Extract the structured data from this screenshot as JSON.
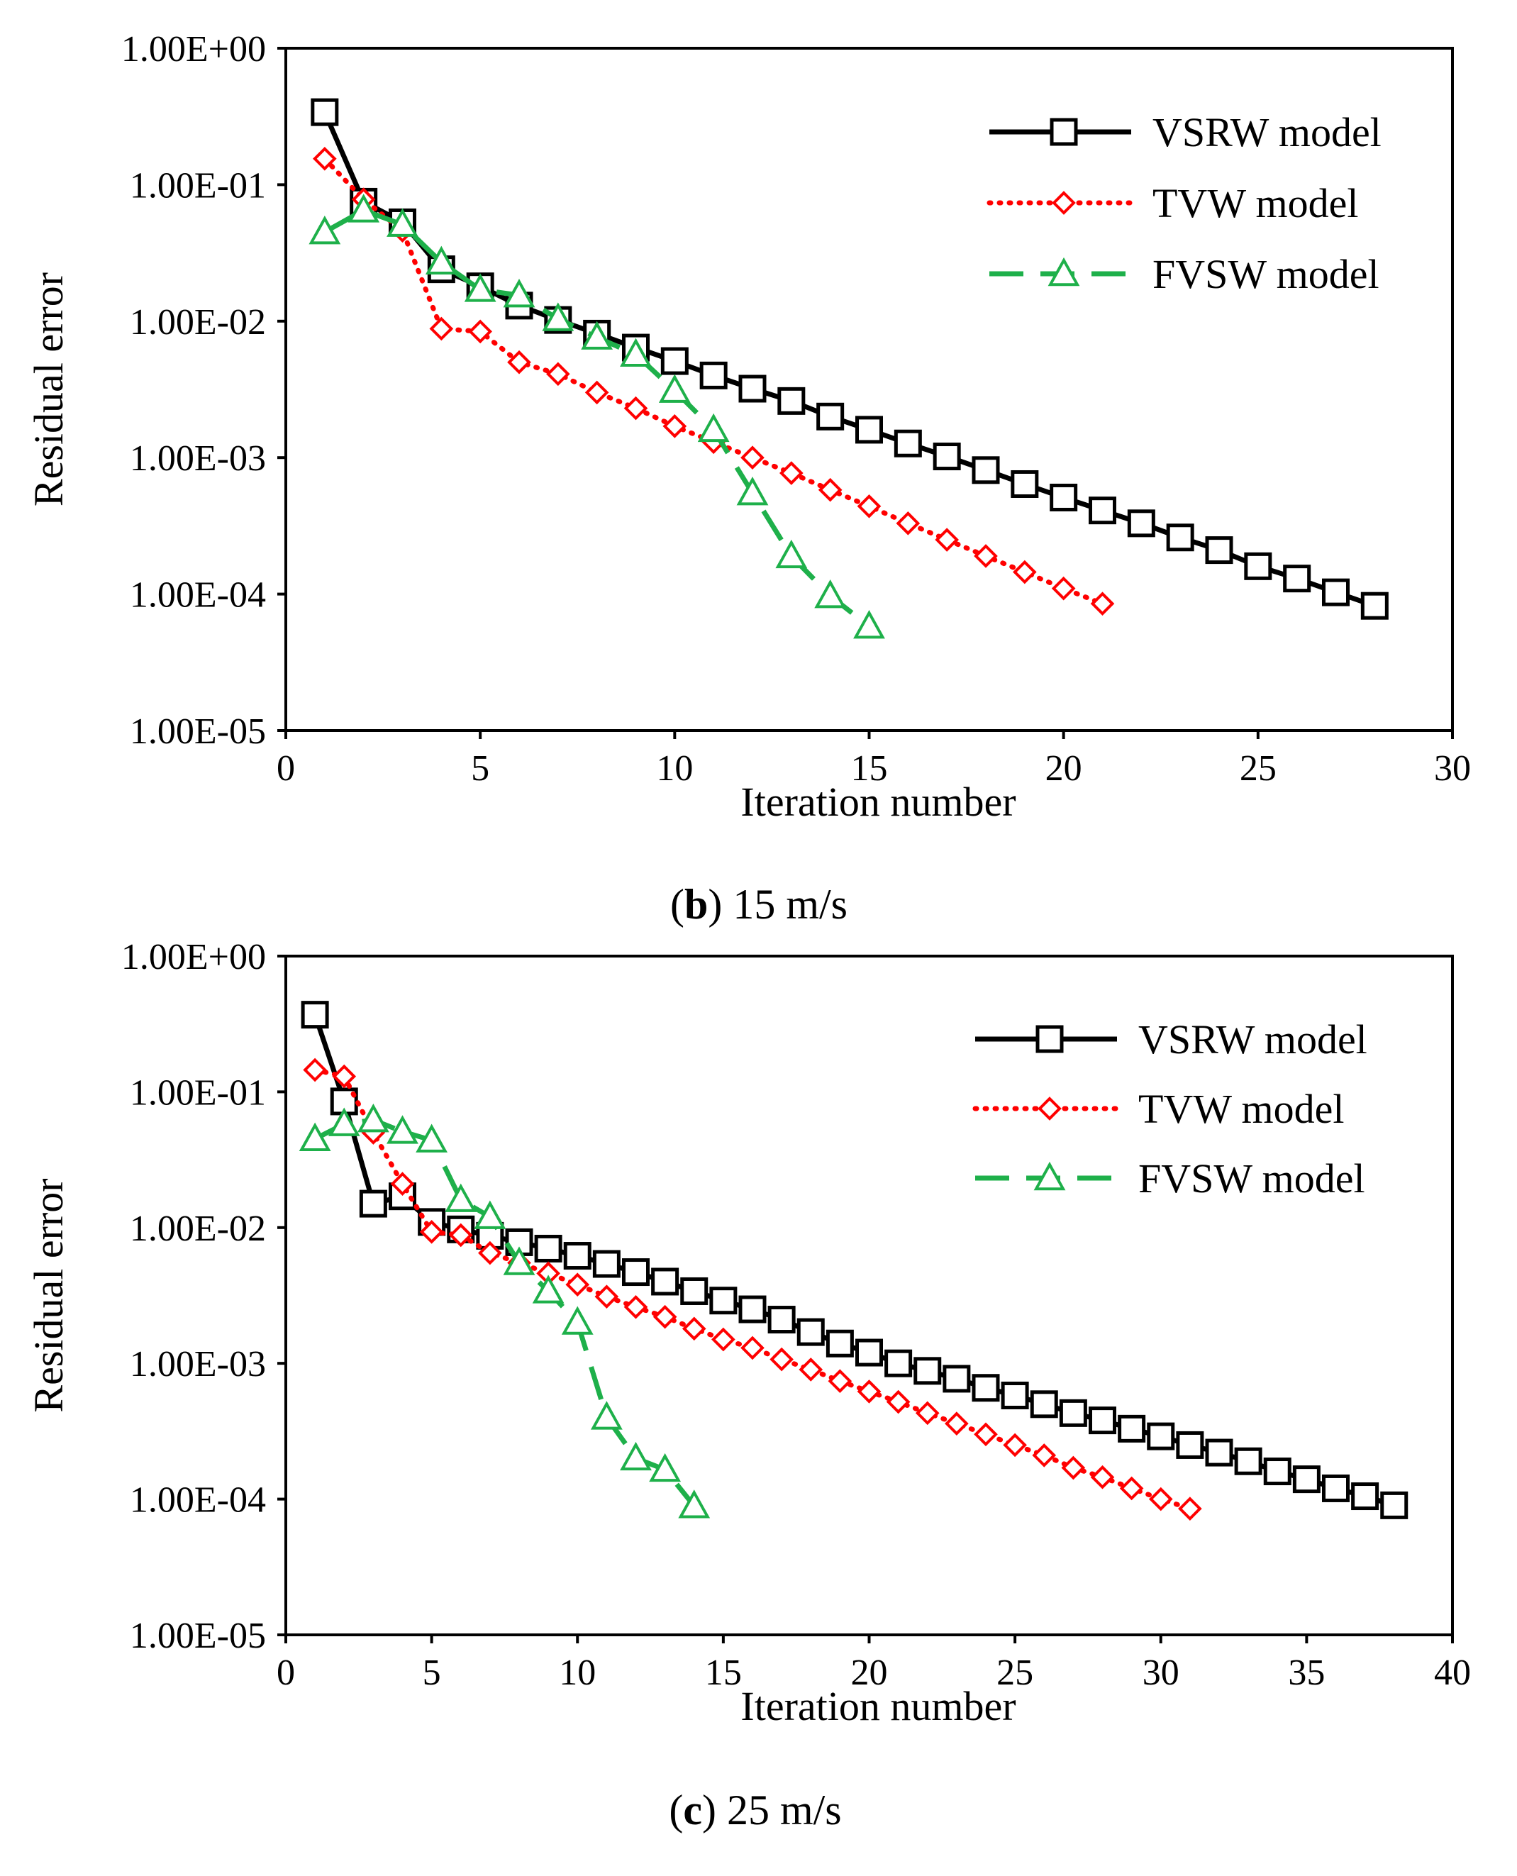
{
  "chart_data": [
    {
      "type": "line",
      "panel_label": "b",
      "caption_text": " 15 m/s",
      "xlabel": "Iteration number",
      "ylabel": "Residual error",
      "xlim": [
        0,
        30
      ],
      "xticks": [
        0,
        5,
        10,
        15,
        20,
        25,
        30
      ],
      "ylim": [
        1e-05,
        1
      ],
      "yscale": "log",
      "yticks": [
        "1.00E+00",
        "1.00E-01",
        "1.00E-02",
        "1.00E-03",
        "1.00E-04",
        "1.00E-05"
      ],
      "legend_position": "top-right",
      "series": [
        {
          "name": "VSRW model",
          "color": "#000000",
          "marker": "square",
          "line": "solid",
          "x": [
            1,
            2,
            3,
            4,
            5,
            6,
            7,
            8,
            9,
            10,
            11,
            12,
            13,
            14,
            15,
            16,
            17,
            18,
            19,
            20,
            21,
            22,
            23,
            24,
            25,
            26,
            27,
            28
          ],
          "values": [
            0.34,
            0.075,
            0.053,
            0.024,
            0.018,
            0.013,
            0.0102,
            0.0081,
            0.0064,
            0.0051,
            0.004,
            0.0032,
            0.0026,
            0.002,
            0.0016,
            0.00127,
            0.00102,
            0.00081,
            0.00064,
            0.00051,
            0.00041,
            0.00033,
            0.00026,
            0.00021,
            0.00016,
            0.00013,
            0.000103,
            8.2e-05
          ]
        },
        {
          "name": "TVW model",
          "color": "#ff0000",
          "marker": "diamond",
          "line": "dotted",
          "x": [
            1,
            2,
            3,
            4,
            5,
            6,
            7,
            8,
            9,
            10,
            11,
            12,
            13,
            14,
            15,
            16,
            17,
            18,
            19,
            20,
            21
          ],
          "values": [
            0.155,
            0.078,
            0.046,
            0.0088,
            0.0084,
            0.005,
            0.0041,
            0.003,
            0.0023,
            0.0017,
            0.0013,
            0.001,
            0.00077,
            0.00058,
            0.00044,
            0.00033,
            0.00025,
            0.00019,
            0.000145,
            0.00011,
            8.5e-05
          ]
        },
        {
          "name": "FVSW model",
          "color": "#1eb04a",
          "marker": "triangle",
          "line": "dashed",
          "x": [
            1,
            2,
            3,
            4,
            5,
            6,
            7,
            8,
            9,
            10,
            11,
            12,
            13,
            14,
            15
          ],
          "values": [
            0.045,
            0.065,
            0.051,
            0.027,
            0.017,
            0.0155,
            0.0104,
            0.0076,
            0.0057,
            0.0031,
            0.0016,
            0.00055,
            0.00019,
            9.7e-05,
            5.8e-05
          ]
        }
      ]
    },
    {
      "type": "line",
      "panel_label": "c",
      "caption_text": " 25 m/s",
      "xlabel": "Iteration number",
      "ylabel": "Residual error",
      "xlim": [
        0,
        40
      ],
      "xticks": [
        0,
        5,
        10,
        15,
        20,
        25,
        30,
        35,
        40
      ],
      "ylim": [
        1e-05,
        1
      ],
      "yscale": "log",
      "yticks": [
        "1.00E+00",
        "1.00E-01",
        "1.00E-02",
        "1.00E-03",
        "1.00E-04",
        "1.00E-05"
      ],
      "legend_position": "top-right",
      "series": [
        {
          "name": "VSRW model",
          "color": "#000000",
          "marker": "square",
          "line": "solid",
          "x": [
            1,
            2,
            3,
            4,
            5,
            6,
            7,
            8,
            9,
            10,
            11,
            12,
            13,
            14,
            15,
            16,
            17,
            18,
            19,
            20,
            21,
            22,
            23,
            24,
            25,
            26,
            27,
            28,
            29,
            30,
            31,
            32,
            33,
            34,
            35,
            36,
            37,
            38
          ],
          "values": [
            0.37,
            0.085,
            0.015,
            0.017,
            0.011,
            0.0097,
            0.0087,
            0.0078,
            0.007,
            0.0062,
            0.0054,
            0.0047,
            0.004,
            0.0034,
            0.0029,
            0.0025,
            0.0021,
            0.0017,
            0.0014,
            0.0012,
            0.001,
            0.00088,
            0.00077,
            0.00066,
            0.00058,
            0.0005,
            0.00043,
            0.00038,
            0.00033,
            0.00029,
            0.00025,
            0.00022,
            0.00019,
            0.00016,
            0.00014,
            0.00012,
            0.000105,
            9e-05
          ]
        },
        {
          "name": "TVW model",
          "color": "#ff0000",
          "marker": "diamond",
          "line": "dotted",
          "x": [
            1,
            2,
            3,
            4,
            5,
            6,
            7,
            8,
            9,
            10,
            11,
            12,
            13,
            14,
            15,
            16,
            17,
            18,
            19,
            20,
            21,
            22,
            23,
            24,
            25,
            26,
            27,
            28,
            29,
            30,
            31
          ],
          "values": [
            0.145,
            0.13,
            0.05,
            0.021,
            0.0093,
            0.0088,
            0.0065,
            0.0055,
            0.0046,
            0.0038,
            0.0031,
            0.0026,
            0.0022,
            0.0018,
            0.0015,
            0.0013,
            0.00107,
            0.0009,
            0.00074,
            0.00062,
            0.00052,
            0.00043,
            0.00036,
            0.0003,
            0.00025,
            0.00021,
            0.00017,
            0.000145,
            0.00012,
            0.0001,
            8.5e-05
          ]
        },
        {
          "name": "FVSW model",
          "color": "#1eb04a",
          "marker": "triangle",
          "line": "dashed",
          "x": [
            1,
            2,
            3,
            4,
            5,
            6,
            7,
            8,
            9,
            10,
            11,
            12,
            13,
            14
          ],
          "values": [
            0.045,
            0.058,
            0.062,
            0.051,
            0.044,
            0.016,
            0.012,
            0.0055,
            0.0034,
            0.002,
            0.0004,
            0.0002,
            0.000165,
            8.9e-05
          ]
        }
      ]
    }
  ]
}
